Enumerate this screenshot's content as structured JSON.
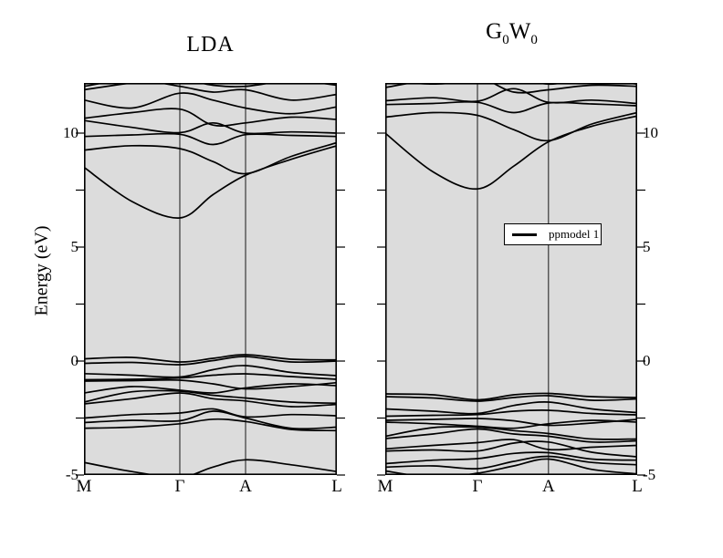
{
  "titles": {
    "left": "LDA",
    "right_parts": {
      "g": "G",
      "g_sub": "0",
      "w": "W",
      "w_sub": "0"
    }
  },
  "axis": {
    "ylabel": "Energy (eV)",
    "ytick_labels": [
      "10",
      "5",
      "0",
      "-5"
    ],
    "ytick_values": [
      10,
      5,
      0,
      -5
    ]
  },
  "legend": {
    "label": "ppmodel 1"
  },
  "colors": {
    "plot_bg": "#dcdcdc",
    "line": "#000000",
    "page_bg": "#ffffff",
    "grid": "#000000"
  },
  "chart_data": [
    {
      "type": "line",
      "title": "LDA",
      "xlabel": "",
      "ylabel": "Energy (eV)",
      "x_categories": [
        "M",
        "Γ",
        "A",
        "L"
      ],
      "x_positions": [
        0,
        0.379,
        0.639,
        1
      ],
      "ylim": [
        -5,
        12.2
      ],
      "ytick_step": 2.5,
      "grid": "vertical-at-kpoints",
      "bands": [
        [
          [
            0,
            -4.45
          ],
          [
            0.19,
            -4.85
          ],
          [
            0.379,
            -5.1
          ],
          [
            0.51,
            -4.65
          ],
          [
            0.639,
            -4.33
          ],
          [
            0.82,
            -4.55
          ],
          [
            1,
            -4.85
          ]
        ],
        [
          [
            0,
            -2.95
          ],
          [
            0.19,
            -2.9
          ],
          [
            0.379,
            -2.75
          ],
          [
            0.51,
            -2.55
          ],
          [
            0.639,
            -2.65
          ],
          [
            0.82,
            -3.0
          ],
          [
            1,
            -3.05
          ]
        ],
        [
          [
            0,
            -2.7
          ],
          [
            0.19,
            -2.6
          ],
          [
            0.379,
            -2.62
          ],
          [
            0.51,
            -2.2
          ],
          [
            0.639,
            -2.5
          ],
          [
            0.82,
            -2.95
          ],
          [
            1,
            -2.9
          ]
        ],
        [
          [
            0,
            -2.5
          ],
          [
            0.19,
            -2.35
          ],
          [
            0.379,
            -2.28
          ],
          [
            0.51,
            -2.1
          ],
          [
            0.639,
            -2.45
          ],
          [
            0.82,
            -2.35
          ],
          [
            1,
            -2.4
          ]
        ],
        [
          [
            0,
            -1.88
          ],
          [
            0.19,
            -1.65
          ],
          [
            0.379,
            -1.4
          ],
          [
            0.51,
            -1.65
          ],
          [
            0.639,
            -1.75
          ],
          [
            0.82,
            -2.0
          ],
          [
            1,
            -1.9
          ]
        ],
        [
          [
            0,
            -1.8
          ],
          [
            0.19,
            -1.35
          ],
          [
            0.379,
            -1.32
          ],
          [
            0.51,
            -1.5
          ],
          [
            0.639,
            -1.62
          ],
          [
            0.82,
            -1.8
          ],
          [
            1,
            -1.85
          ]
        ],
        [
          [
            0,
            -1.4
          ],
          [
            0.19,
            -1.12
          ],
          [
            0.379,
            -1.28
          ],
          [
            0.51,
            -1.4
          ],
          [
            0.639,
            -1.18
          ],
          [
            0.82,
            -1.0
          ],
          [
            1,
            -1.08
          ]
        ],
        [
          [
            0,
            -0.88
          ],
          [
            0.19,
            -0.86
          ],
          [
            0.379,
            -0.84
          ],
          [
            0.51,
            -1.0
          ],
          [
            0.639,
            -1.22
          ],
          [
            0.82,
            -1.12
          ],
          [
            1,
            -0.95
          ]
        ],
        [
          [
            0,
            -0.82
          ],
          [
            0.19,
            -0.8
          ],
          [
            0.379,
            -0.74
          ],
          [
            0.51,
            -0.62
          ],
          [
            0.639,
            -0.56
          ],
          [
            0.82,
            -0.68
          ],
          [
            1,
            -0.8
          ]
        ],
        [
          [
            0,
            -0.55
          ],
          [
            0.19,
            -0.62
          ],
          [
            0.379,
            -0.7
          ],
          [
            0.51,
            -0.38
          ],
          [
            0.639,
            -0.2
          ],
          [
            0.82,
            -0.5
          ],
          [
            1,
            -0.64
          ]
        ],
        [
          [
            0,
            -0.1
          ],
          [
            0.19,
            -0.06
          ],
          [
            0.379,
            -0.16
          ],
          [
            0.51,
            0.02
          ],
          [
            0.639,
            0.2
          ],
          [
            0.82,
            -0.04
          ],
          [
            1,
            0.0
          ]
        ],
        [
          [
            0,
            0.1
          ],
          [
            0.19,
            0.16
          ],
          [
            0.379,
            -0.04
          ],
          [
            0.51,
            0.12
          ],
          [
            0.639,
            0.28
          ],
          [
            0.82,
            0.08
          ],
          [
            1,
            0.05
          ]
        ],
        [
          [
            0,
            8.5
          ],
          [
            0.19,
            7.0
          ],
          [
            0.379,
            6.28
          ],
          [
            0.51,
            7.3
          ],
          [
            0.639,
            8.15
          ],
          [
            0.82,
            8.85
          ],
          [
            1,
            9.45
          ]
        ],
        [
          [
            0,
            9.25
          ],
          [
            0.19,
            9.45
          ],
          [
            0.379,
            9.32
          ],
          [
            0.51,
            8.75
          ],
          [
            0.639,
            8.22
          ],
          [
            0.82,
            8.98
          ],
          [
            1,
            9.58
          ]
        ],
        [
          [
            0,
            9.85
          ],
          [
            0.19,
            9.92
          ],
          [
            0.379,
            9.95
          ],
          [
            0.51,
            9.5
          ],
          [
            0.639,
            9.93
          ],
          [
            0.82,
            9.9
          ],
          [
            1,
            9.85
          ]
        ],
        [
          [
            0,
            10.55
          ],
          [
            0.19,
            10.25
          ],
          [
            0.379,
            10.02
          ],
          [
            0.51,
            10.45
          ],
          [
            0.639,
            10.0
          ],
          [
            0.82,
            10.05
          ],
          [
            1,
            10.0
          ]
        ],
        [
          [
            0,
            10.65
          ],
          [
            0.19,
            10.9
          ],
          [
            0.379,
            11.05
          ],
          [
            0.51,
            10.35
          ],
          [
            0.639,
            10.45
          ],
          [
            0.82,
            10.7
          ],
          [
            1,
            10.6
          ]
        ],
        [
          [
            0,
            11.45
          ],
          [
            0.19,
            11.1
          ],
          [
            0.379,
            11.75
          ],
          [
            0.51,
            11.45
          ],
          [
            0.639,
            11.1
          ],
          [
            0.82,
            10.85
          ],
          [
            1,
            11.15
          ]
        ],
        [
          [
            0,
            12.05
          ],
          [
            0.19,
            12.35
          ],
          [
            0.379,
            12.05
          ],
          [
            0.51,
            11.8
          ],
          [
            0.639,
            11.9
          ],
          [
            0.82,
            11.45
          ],
          [
            1,
            11.7
          ]
        ],
        [
          [
            0,
            11.9
          ],
          [
            0.19,
            12.2
          ],
          [
            0.379,
            12.35
          ],
          [
            0.51,
            12.1
          ],
          [
            0.639,
            12.05
          ],
          [
            0.82,
            12.3
          ],
          [
            1,
            12.1
          ]
        ]
      ]
    },
    {
      "type": "line",
      "title": "G0W0",
      "legend": "ppmodel 1",
      "xlabel": "",
      "ylabel": "Energy (eV)",
      "x_categories": [
        "M",
        "Γ",
        "A",
        "L"
      ],
      "x_positions": [
        0,
        0.366,
        0.648,
        1
      ],
      "ylim": [
        -5,
        12.2
      ],
      "ytick_step": 2.5,
      "grid": "vertical-at-kpoints",
      "bands": [
        [
          [
            0,
            -4.82
          ],
          [
            0.19,
            -5.1
          ],
          [
            0.366,
            -4.92
          ],
          [
            0.51,
            -4.6
          ],
          [
            0.648,
            -4.3
          ],
          [
            0.82,
            -4.75
          ],
          [
            1,
            -4.95
          ]
        ],
        [
          [
            0,
            -4.65
          ],
          [
            0.19,
            -4.6
          ],
          [
            0.366,
            -4.72
          ],
          [
            0.51,
            -4.4
          ],
          [
            0.648,
            -4.18
          ],
          [
            0.82,
            -4.45
          ],
          [
            1,
            -4.55
          ]
        ],
        [
          [
            0,
            -4.5
          ],
          [
            0.19,
            -4.35
          ],
          [
            0.366,
            -4.28
          ],
          [
            0.51,
            -4.05
          ],
          [
            0.648,
            -4.02
          ],
          [
            0.82,
            -4.3
          ],
          [
            1,
            -4.35
          ]
        ],
        [
          [
            0,
            -3.95
          ],
          [
            0.19,
            -3.9
          ],
          [
            0.366,
            -3.95
          ],
          [
            0.51,
            -3.6
          ],
          [
            0.648,
            -3.55
          ],
          [
            0.82,
            -4.0
          ],
          [
            1,
            -4.2
          ]
        ],
        [
          [
            0,
            -3.85
          ],
          [
            0.19,
            -3.7
          ],
          [
            0.366,
            -3.58
          ],
          [
            0.51,
            -3.45
          ],
          [
            0.648,
            -3.88
          ],
          [
            0.82,
            -3.78
          ],
          [
            1,
            -3.7
          ]
        ],
        [
          [
            0,
            -3.4
          ],
          [
            0.19,
            -3.2
          ],
          [
            0.366,
            -2.98
          ],
          [
            0.51,
            -3.2
          ],
          [
            0.648,
            -3.3
          ],
          [
            0.82,
            -3.55
          ],
          [
            1,
            -3.5
          ]
        ],
        [
          [
            0,
            -3.3
          ],
          [
            0.19,
            -2.92
          ],
          [
            0.366,
            -2.9
          ],
          [
            0.51,
            -3.05
          ],
          [
            0.648,
            -3.18
          ],
          [
            0.82,
            -3.42
          ],
          [
            1,
            -3.42
          ]
        ],
        [
          [
            0,
            -2.68
          ],
          [
            0.19,
            -2.75
          ],
          [
            0.366,
            -2.86
          ],
          [
            0.51,
            -2.95
          ],
          [
            0.648,
            -2.75
          ],
          [
            0.82,
            -2.6
          ],
          [
            1,
            -2.68
          ]
        ],
        [
          [
            0,
            -2.6
          ],
          [
            0.19,
            -2.56
          ],
          [
            0.366,
            -2.52
          ],
          [
            0.51,
            -2.62
          ],
          [
            0.648,
            -2.82
          ],
          [
            0.82,
            -2.72
          ],
          [
            1,
            -2.56
          ]
        ],
        [
          [
            0,
            -2.42
          ],
          [
            0.19,
            -2.38
          ],
          [
            0.366,
            -2.35
          ],
          [
            0.51,
            -2.2
          ],
          [
            0.648,
            -2.16
          ],
          [
            0.82,
            -2.3
          ],
          [
            1,
            -2.36
          ]
        ],
        [
          [
            0,
            -2.1
          ],
          [
            0.19,
            -2.2
          ],
          [
            0.366,
            -2.3
          ],
          [
            0.51,
            -1.95
          ],
          [
            0.648,
            -1.8
          ],
          [
            0.82,
            -2.1
          ],
          [
            1,
            -2.26
          ]
        ],
        [
          [
            0,
            -1.56
          ],
          [
            0.19,
            -1.62
          ],
          [
            0.366,
            -1.76
          ],
          [
            0.51,
            -1.6
          ],
          [
            0.648,
            -1.52
          ],
          [
            0.82,
            -1.72
          ],
          [
            1,
            -1.66
          ]
        ],
        [
          [
            0,
            -1.44
          ],
          [
            0.19,
            -1.48
          ],
          [
            0.366,
            -1.7
          ],
          [
            0.51,
            -1.48
          ],
          [
            0.648,
            -1.42
          ],
          [
            0.82,
            -1.56
          ],
          [
            1,
            -1.6
          ]
        ],
        [
          [
            0,
            10.0
          ],
          [
            0.19,
            8.3
          ],
          [
            0.366,
            7.55
          ],
          [
            0.51,
            8.55
          ],
          [
            0.648,
            9.62
          ],
          [
            0.82,
            10.3
          ],
          [
            1,
            10.75
          ]
        ],
        [
          [
            0,
            10.7
          ],
          [
            0.19,
            10.9
          ],
          [
            0.366,
            10.78
          ],
          [
            0.51,
            10.15
          ],
          [
            0.648,
            9.67
          ],
          [
            0.82,
            10.4
          ],
          [
            1,
            10.9
          ]
        ],
        [
          [
            0,
            11.25
          ],
          [
            0.19,
            11.3
          ],
          [
            0.366,
            11.35
          ],
          [
            0.51,
            10.9
          ],
          [
            0.648,
            11.32
          ],
          [
            0.82,
            11.28
          ],
          [
            1,
            11.2
          ]
        ],
        [
          [
            0,
            11.42
          ],
          [
            0.19,
            11.55
          ],
          [
            0.366,
            11.4
          ],
          [
            0.51,
            11.95
          ],
          [
            0.648,
            11.35
          ],
          [
            0.82,
            11.45
          ],
          [
            1,
            11.3
          ]
        ],
        [
          [
            0,
            12.0
          ],
          [
            0.19,
            12.35
          ],
          [
            0.366,
            12.45
          ],
          [
            0.51,
            11.8
          ],
          [
            0.648,
            11.9
          ],
          [
            0.82,
            12.1
          ],
          [
            1,
            12.05
          ]
        ],
        [
          [
            0,
            12.3
          ],
          [
            0.19,
            12.15
          ],
          [
            0.366,
            12.3
          ],
          [
            0.51,
            12.45
          ],
          [
            0.648,
            12.15
          ],
          [
            0.82,
            12.35
          ],
          [
            1,
            12.15
          ]
        ]
      ]
    }
  ]
}
